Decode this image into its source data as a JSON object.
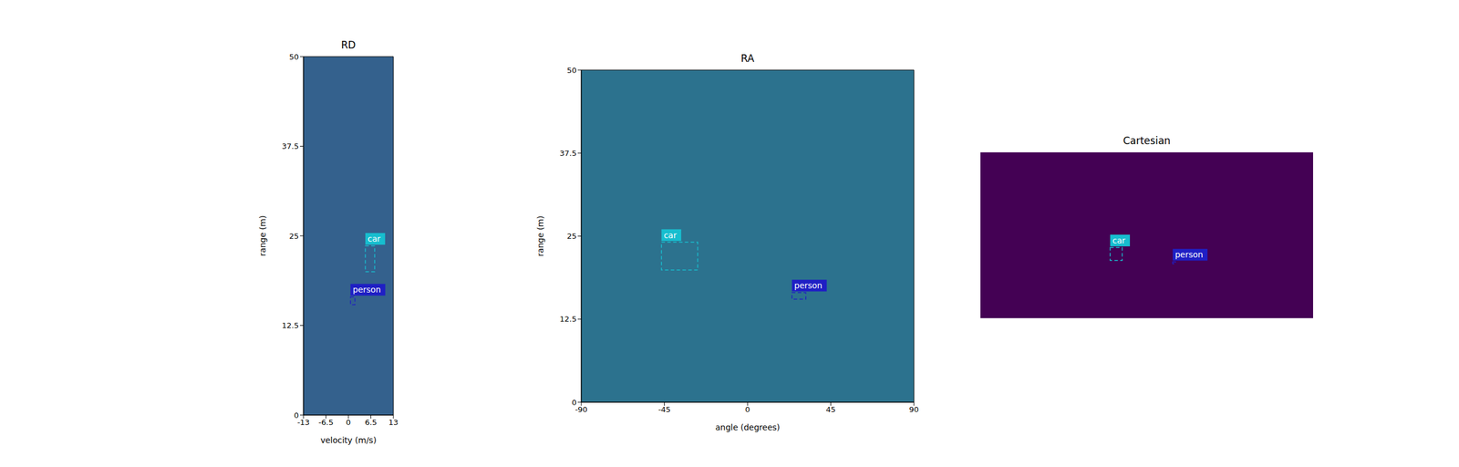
{
  "chart_data": [
    {
      "type": "heatmap",
      "title": "RD",
      "x_label": "velocity (m/s)",
      "y_label": "range (m)",
      "color": "#34618d",
      "xlim": [
        -13,
        13
      ],
      "xticks": [
        -13,
        -6.5,
        0,
        6.5,
        13
      ],
      "ylim": [
        0,
        50
      ],
      "yticks": [
        0,
        12.5,
        25,
        37.5,
        50
      ],
      "boxes": [
        {
          "label": "car",
          "x": [
            4.9,
            7.6
          ],
          "y": [
            20,
            23.6
          ],
          "color": "#17becf"
        },
        {
          "label": "person",
          "x": [
            0.6,
            1.9
          ],
          "y": [
            15.4,
            16.5
          ],
          "color": "#1f1fc4"
        }
      ]
    },
    {
      "type": "heatmap",
      "title": "RA",
      "x_label": "angle (degrees)",
      "y_label": "range (m)",
      "color": "#2c728e",
      "xlim": [
        -90,
        90
      ],
      "xticks": [
        -90,
        -45,
        0,
        45,
        90
      ],
      "ylim": [
        0,
        50
      ],
      "yticks": [
        0,
        12.5,
        25,
        37.5,
        50
      ],
      "boxes": [
        {
          "label": "car",
          "x": [
            -46.6,
            -27
          ],
          "y": [
            19.9,
            24.1
          ],
          "color": "#17becf"
        },
        {
          "label": "person",
          "x": [
            24,
            31.5
          ],
          "y": [
            15.5,
            16.5
          ],
          "color": "#1f1fc4"
        }
      ]
    },
    {
      "type": "heatmap",
      "title": "Cartesian",
      "color": "#440154",
      "tick_labels": false,
      "xlim": [
        -50,
        50
      ],
      "ylim": [
        0,
        50
      ],
      "boxes": [
        {
          "label": "car",
          "x": [
            -11,
            -7.4
          ],
          "y": [
            17.4,
            21.3
          ],
          "color": "#17becf"
        },
        {
          "label": "person",
          "x": [
            7.8,
            8.6
          ],
          "y": [
            16.4,
            17
          ],
          "color": "#1f1fc4"
        }
      ]
    }
  ]
}
